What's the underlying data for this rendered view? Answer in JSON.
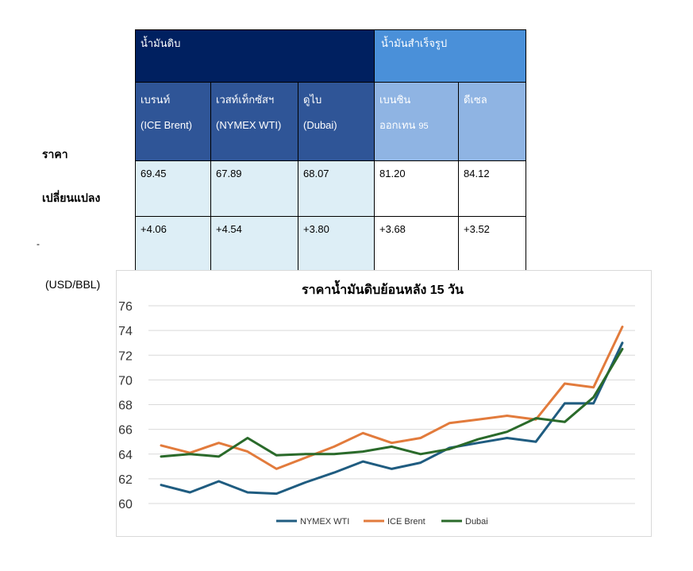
{
  "table": {
    "group_crude": "น้ำมันดิบ",
    "group_refined": "น้ำมันสำเร็จรูป",
    "columns": [
      {
        "name": "เบรนท์",
        "sub": "(ICE Brent)"
      },
      {
        "name": "เวสท์เท็กซัสฯ",
        "sub": "(NYMEX WTI)"
      },
      {
        "name": "ดูไบ",
        "sub": "(Dubai)"
      },
      {
        "name": "เบนซิน",
        "sub": "ออกเทน",
        "sub_extra": "95"
      },
      {
        "name": "ดีเซล",
        "sub": ""
      }
    ],
    "row_labels": [
      "ราคา",
      "เปลี่ยนแปลง"
    ],
    "prices": [
      "69.45",
      "67.89",
      "68.07",
      "81.20",
      "84.12"
    ],
    "changes": [
      "+4.06",
      "+4.54",
      "+3.80",
      "+3.68",
      "+3.52"
    ]
  },
  "dash_mark": "-",
  "chart_data": {
    "type": "line",
    "title": "ราคาน้ำมันดิบย้อนหลัง 15 วัน",
    "unit_label": "(USD/BBL)",
    "ylim": [
      60,
      76
    ],
    "yticks": [
      60,
      62,
      64,
      66,
      68,
      70,
      72,
      74,
      76
    ],
    "grid": true,
    "legend": "bottom",
    "series": [
      {
        "name": "NYMEX WTI",
        "color": "#1f5c80",
        "values": [
          61.5,
          60.9,
          61.8,
          60.9,
          60.8,
          61.7,
          62.5,
          63.4,
          62.8,
          63.3,
          64.5,
          64.9,
          65.3,
          65.0,
          68.1,
          68.1,
          73.0
        ]
      },
      {
        "name": "ICE Brent",
        "color": "#e27b3c",
        "values": [
          64.7,
          64.1,
          64.9,
          64.2,
          62.8,
          63.7,
          64.6,
          65.7,
          64.9,
          65.3,
          66.5,
          66.8,
          67.1,
          66.8,
          69.7,
          69.4,
          74.3
        ]
      },
      {
        "name": "Dubai",
        "color": "#2a6a2a",
        "values": [
          63.8,
          64.0,
          63.8,
          65.3,
          63.9,
          64.0,
          64.0,
          64.2,
          64.6,
          64.0,
          64.4,
          65.2,
          65.8,
          66.9,
          66.6,
          68.6,
          72.5
        ]
      }
    ]
  }
}
